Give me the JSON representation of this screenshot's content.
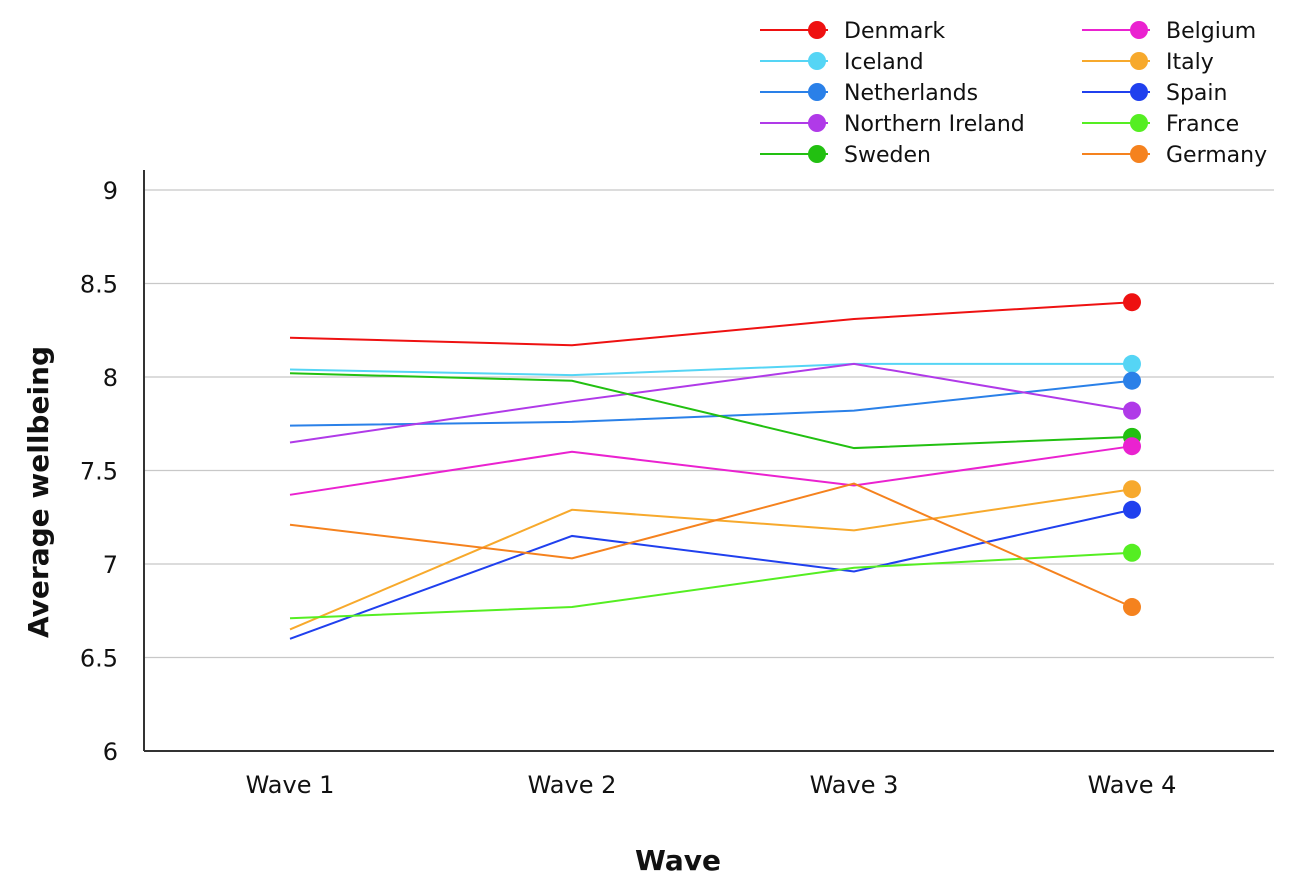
{
  "chart_data": {
    "type": "line",
    "title": "",
    "xlabel": "Wave",
    "ylabel": "Average wellbeing",
    "categories": [
      "Wave 1",
      "Wave 2",
      "Wave 3",
      "Wave 4"
    ],
    "ylim": [
      6,
      9
    ],
    "yticks": [
      6,
      6.5,
      7,
      7.5,
      8,
      8.5,
      9
    ],
    "ytick_labels": [
      "6",
      "6.5",
      "7",
      "7.5",
      "8",
      "8.5",
      "9"
    ],
    "grid": "horizontal",
    "legend_position": "top-right",
    "end_markers": true,
    "series": [
      {
        "name": "Denmark",
        "color": "#ee1111",
        "values": [
          8.21,
          8.17,
          8.31,
          8.4
        ]
      },
      {
        "name": "Iceland",
        "color": "#55d5f5",
        "values": [
          8.04,
          8.01,
          8.07,
          8.07
        ]
      },
      {
        "name": "Netherlands",
        "color": "#2a80e8",
        "values": [
          7.74,
          7.76,
          7.82,
          7.98
        ]
      },
      {
        "name": "Northern Ireland",
        "color": "#b03ae8",
        "values": [
          7.65,
          7.87,
          8.07,
          7.82
        ]
      },
      {
        "name": "Sweden",
        "color": "#22c011",
        "values": [
          8.02,
          7.98,
          7.62,
          7.68
        ]
      },
      {
        "name": "Belgium",
        "color": "#ea22d0",
        "values": [
          7.37,
          7.6,
          7.42,
          7.63
        ]
      },
      {
        "name": "Italy",
        "color": "#f7a92c",
        "values": [
          6.65,
          7.29,
          7.18,
          7.4
        ]
      },
      {
        "name": "Spain",
        "color": "#2040ee",
        "values": [
          6.6,
          7.15,
          6.96,
          7.29
        ]
      },
      {
        "name": "France",
        "color": "#55ee22",
        "values": [
          6.71,
          6.77,
          6.98,
          7.06
        ]
      },
      {
        "name": "Germany",
        "color": "#f5821e",
        "values": [
          7.21,
          7.03,
          7.43,
          6.77
        ]
      }
    ]
  }
}
